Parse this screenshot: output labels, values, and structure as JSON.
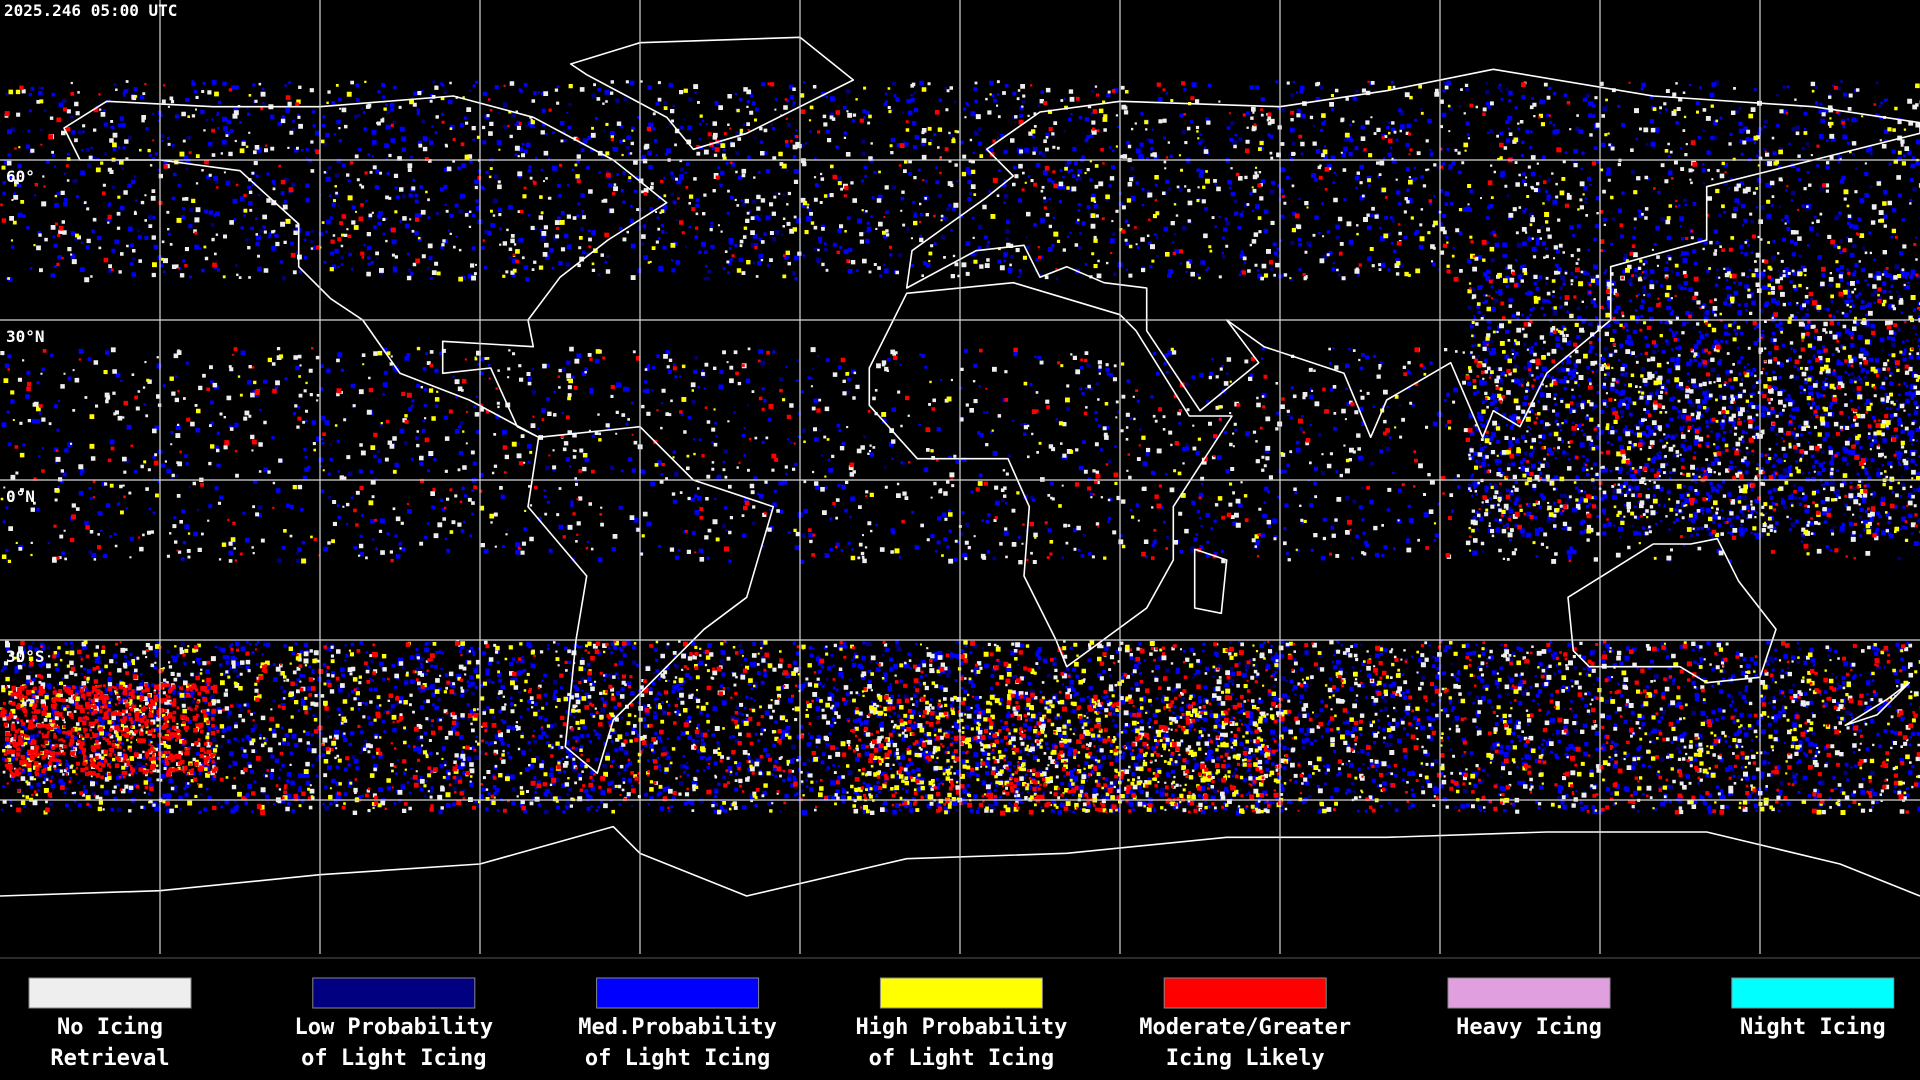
{
  "header": {
    "timestamp": "2025.246 05:00 UTC"
  },
  "map": {
    "latitude_labels": [
      {
        "text": "60°",
        "lat": 60
      },
      {
        "text": "30°N",
        "lat": 30
      },
      {
        "text": "0°N",
        "lat": 0
      },
      {
        "text": "30°S",
        "lat": -30
      }
    ]
  },
  "legend": [
    {
      "lines": [
        "No Icing",
        "Retrieval"
      ],
      "color": "#eeeeee"
    },
    {
      "lines": [
        "Low Probability",
        "of Light Icing"
      ],
      "color": "#000080"
    },
    {
      "lines": [
        "Med.Probability",
        "of Light Icing"
      ],
      "color": "#0000ff"
    },
    {
      "lines": [
        "High Probability",
        "of Light Icing"
      ],
      "color": "#ffff00"
    },
    {
      "lines": [
        "Moderate/Greater",
        "Icing Likely"
      ],
      "color": "#ff0000"
    },
    {
      "lines": [
        "Heavy Icing"
      ],
      "color": "#e0a0e0"
    },
    {
      "lines": [
        "Night Icing"
      ],
      "color": "#00ffff"
    }
  ]
}
